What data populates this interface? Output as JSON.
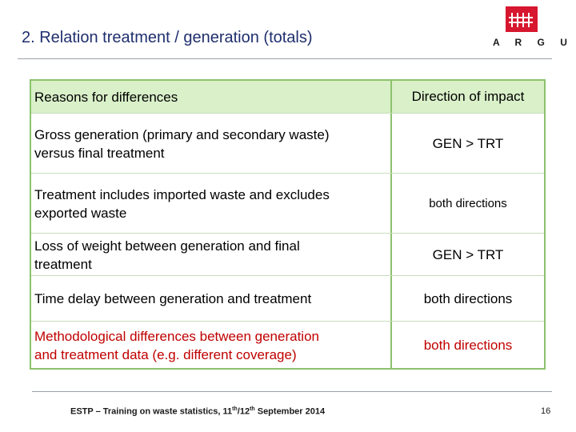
{
  "slide": {
    "title": "2. Relation treatment / generation (totals)",
    "logo_text": "A R G U S"
  },
  "table": {
    "headers": {
      "left": "Reasons for differences",
      "right": "Direction of impact"
    },
    "rows": [
      {
        "reason_line1": "Gross generation (primary and secondary waste)",
        "reason_line2": "versus final treatment",
        "impact": "GEN > TRT"
      },
      {
        "reason_line1": "Treatment includes imported waste and excludes",
        "reason_line2": "exported waste",
        "impact": "both directions"
      },
      {
        "reason_line1": "Loss of weight between generation and final",
        "reason_line2": "treatment",
        "impact": "GEN > TRT"
      },
      {
        "reason_line1": "Time delay between generation and treatment",
        "impact": "both directions"
      },
      {
        "reason_line1": "Methodological differences between generation",
        "reason_line2": "and treatment data (e.g. different coverage)",
        "impact": "both directions"
      }
    ]
  },
  "footer": {
    "text_before": "ESTP – Training on waste statistics, 11",
    "sup1": "th",
    "sep": "/12",
    "sup2": "th",
    "text_after": " September 2014",
    "page_number": "16"
  },
  "colors": {
    "title": "#1f2f6e",
    "accent_red": "#c00000",
    "table_border": "#8cc26b",
    "header_fill": "#d9f0c9",
    "logo_red": "#d7172f"
  }
}
